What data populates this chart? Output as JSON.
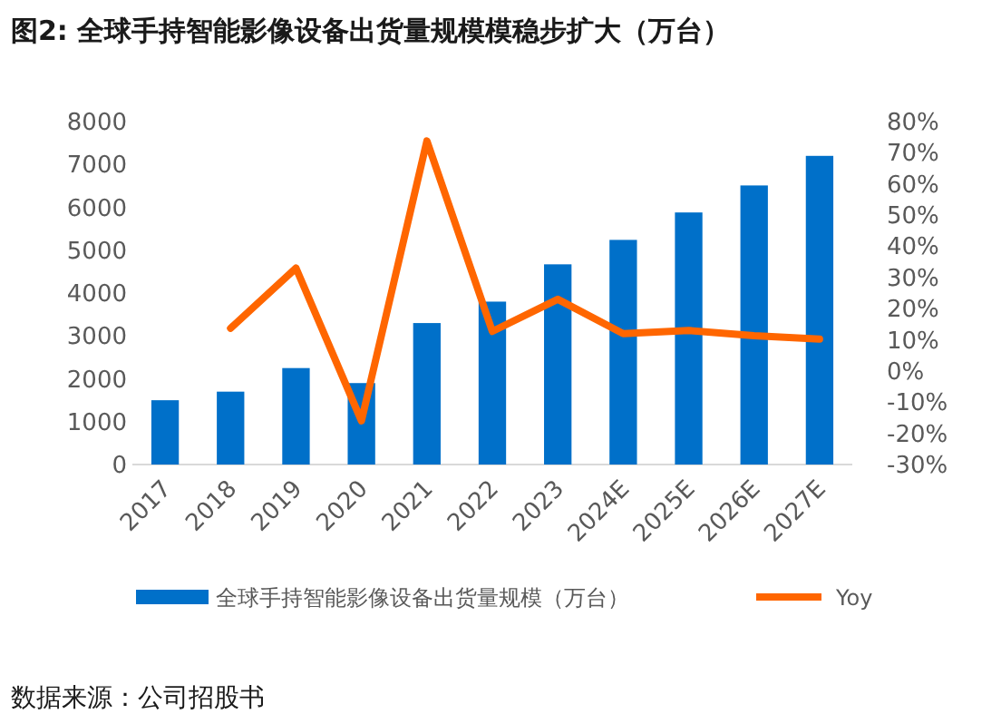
{
  "chart_data": {
    "type": "bar",
    "title": "图2:  全球手持智能影像设备出货量规模模稳步扩大（万台）",
    "categories": [
      "2017",
      "2018",
      "2019",
      "2020",
      "2021",
      "2022",
      "2023",
      "2024E",
      "2025E",
      "2026E",
      "2027E"
    ],
    "series": [
      {
        "name": "全球手持智能影像设备出货量规模（万台）",
        "color": "#0070c9",
        "values": [
          1500,
          1700,
          2250,
          1900,
          3300,
          3800,
          4670,
          5240,
          5880,
          6510,
          7200
        ]
      },
      {
        "name": "Yoy",
        "type": "line",
        "axis": "y2",
        "color": "#ff6600",
        "values": [
          null,
          13.7,
          33,
          -16,
          73.8,
          12.7,
          23,
          12,
          13,
          11.3,
          10.2
        ]
      }
    ],
    "ylim": [
      0,
      8000
    ],
    "yticks": [
      0,
      1000,
      2000,
      3000,
      4000,
      5000,
      6000,
      7000,
      8000
    ],
    "y2lim": [
      -30,
      80
    ],
    "y2ticks": [
      {
        "value": -30,
        "label": "-30%"
      },
      {
        "value": -20,
        "label": "-20%"
      },
      {
        "value": -10,
        "label": "-10%"
      },
      {
        "value": 0,
        "label": "0%"
      },
      {
        "value": 10,
        "label": "10%"
      },
      {
        "value": 20,
        "label": "20%"
      },
      {
        "value": 30,
        "label": "30%"
      },
      {
        "value": 40,
        "label": "40%"
      },
      {
        "value": 50,
        "label": "50%"
      },
      {
        "value": 60,
        "label": "60%"
      },
      {
        "value": 70,
        "label": "70%"
      },
      {
        "value": 80,
        "label": "80%"
      }
    ],
    "legend": "bottom",
    "annotations": [
      "数据来源：公司招股书"
    ]
  }
}
